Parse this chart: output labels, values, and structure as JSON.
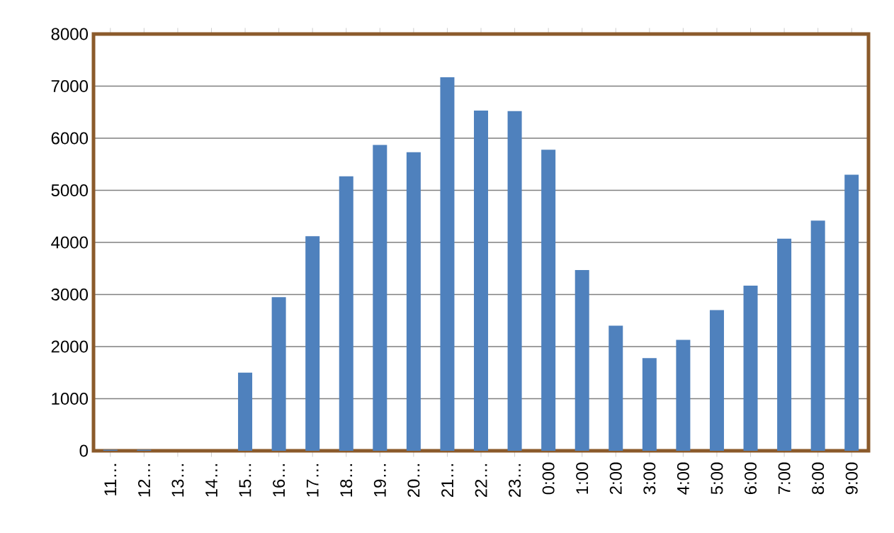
{
  "chart_data": {
    "type": "bar",
    "categories": [
      "11…",
      "12…",
      "13…",
      "14…",
      "15…",
      "16…",
      "17…",
      "18…",
      "19…",
      "20…",
      "21…",
      "22…",
      "23…",
      "0:00",
      "1:00",
      "2:00",
      "3:00",
      "4:00",
      "5:00",
      "6:00",
      "7:00",
      "8:00",
      "9:00"
    ],
    "values": [
      20,
      20,
      0,
      0,
      1500,
      2950,
      4120,
      5270,
      5870,
      5730,
      7170,
      6530,
      6520,
      5780,
      3470,
      2400,
      1780,
      2130,
      2700,
      3170,
      4070,
      4420,
      5300
    ],
    "color": "#4f81bd",
    "ylim": [
      0,
      8000
    ],
    "yticks": [
      0,
      1000,
      2000,
      3000,
      4000,
      5000,
      6000,
      7000,
      8000
    ],
    "grid": "y"
  }
}
